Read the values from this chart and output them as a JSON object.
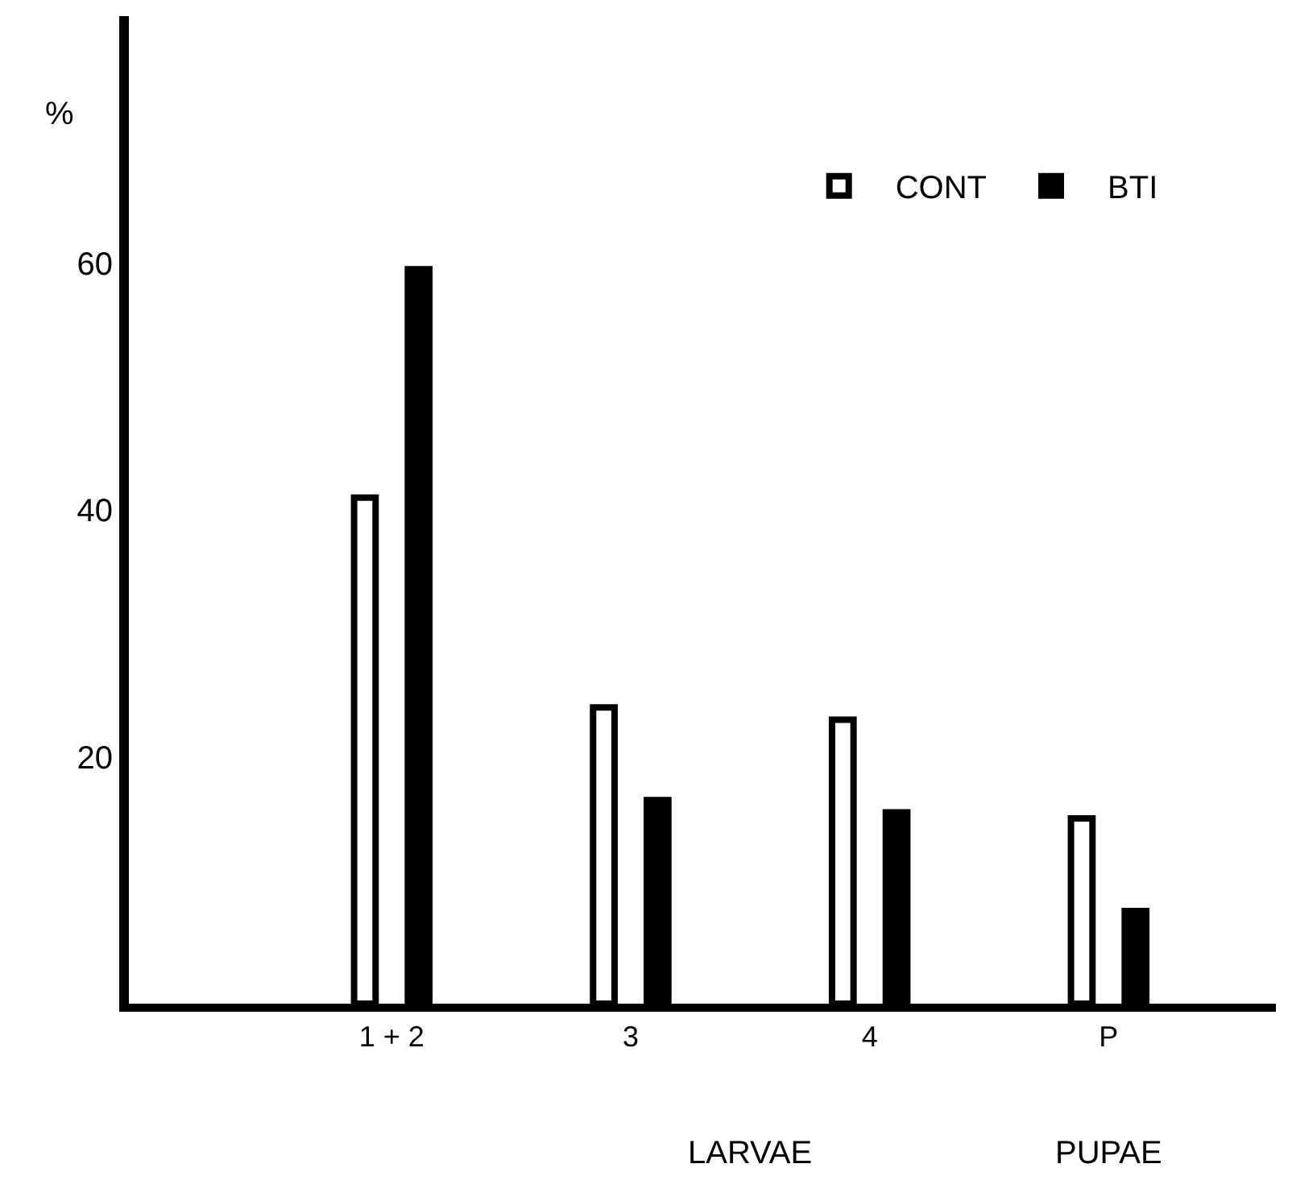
{
  "chart_data": {
    "type": "bar",
    "ylabel": "%",
    "categories": [
      "1 + 2",
      "3",
      "4",
      "P"
    ],
    "series": [
      {
        "name": "CONT",
        "color": "#ffffff",
        "values": [
          41,
          24,
          23,
          15
        ]
      },
      {
        "name": "BTI",
        "color": "#000000",
        "values": [
          59.5,
          16.5,
          15.5,
          7.5
        ]
      }
    ],
    "ylim": [
      0,
      80
    ],
    "yticks": [
      20,
      40,
      60
    ],
    "legend": "top right",
    "annotations": [
      "LARVAE",
      "PUPAE"
    ]
  }
}
